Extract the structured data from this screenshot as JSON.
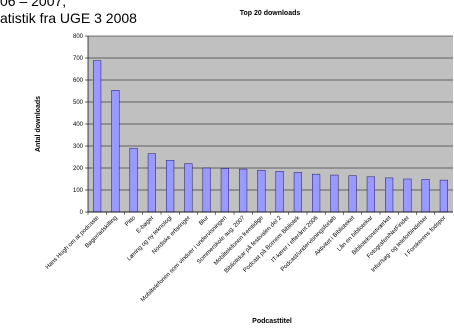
{
  "caption": {
    "line1": "06 – 2007,",
    "line2": "atistik fra UGE 3 2008"
  },
  "colors": {
    "plot_bg": "#c0c0c0",
    "bar_fill": "#9999ff",
    "bar_stroke": "#1a1a66",
    "grid": "#000000"
  },
  "chart_data": {
    "type": "bar",
    "title": "Top 20 downloads",
    "xlabel": "Podcasttitel",
    "ylabel": "Antal downloads",
    "ylim": [
      0,
      800
    ],
    "yticks": [
      0,
      100,
      200,
      300,
      400,
      500,
      600,
      700,
      800
    ],
    "grid": true,
    "legend": "none",
    "categories": [
      "Hans Hugh om at podcaste",
      "Bøger/adskilling",
      "Pitto",
      "E-bøger",
      "Læring og ny teknologi",
      "Nordiske erfaringer",
      "Blur",
      "Mobiltelefonen som vinduer i undervisningen",
      "Sommerskole aug. 2007",
      "Mobiltelefonen fremtidige",
      "Bibliotekar på festivalen del 2",
      "Podcast på Bornem Bibliotek",
      "IT-kører i efteråret 2006",
      "Podcast/undervisningsforløb",
      "Aktivitet i Biblioteket",
      "Lån en bibliotekar",
      "Biblioteksnetværket",
      "Fotografen/NetFinder",
      "Infor/søg- og teleforbindelser",
      "I Forskerens fodspor"
    ],
    "values": [
      688,
      553,
      290,
      265,
      235,
      220,
      200,
      198,
      195,
      190,
      185,
      180,
      172,
      168,
      165,
      160,
      155,
      150,
      148,
      145
    ]
  }
}
